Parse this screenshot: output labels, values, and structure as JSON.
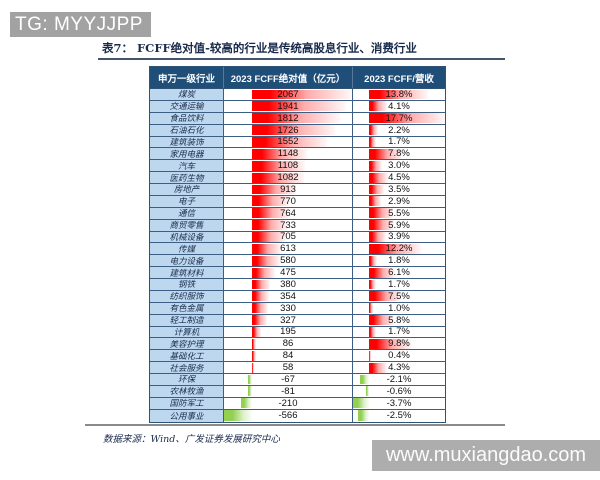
{
  "watermark_top": {
    "text": "TG: MYYJJPP"
  },
  "title": {
    "text": "表7：  FCFF绝对值-较高的行业是传统高股息行业、消费行业"
  },
  "table": {
    "headers": [
      "申万一级行业",
      "2023 FCFF绝对值（亿元）",
      "2023 FCFF/营收"
    ]
  },
  "chart_data": {
    "type": "table",
    "title": "表7：FCFF绝对值-较高的行业是传统高股息行业、消费行业",
    "columns": [
      "申万一级行业",
      "2023 FCFF绝对值（亿元）",
      "2023 FCFF/营收"
    ],
    "bar_style": "excel-gradient-databar",
    "industries": [
      "煤炭",
      "交通运输",
      "食品饮料",
      "石油石化",
      "建筑装饰",
      "家用电器",
      "汽车",
      "医药生物",
      "房地产",
      "电子",
      "通信",
      "商贸零售",
      "机械设备",
      "传媒",
      "电力设备",
      "建筑材料",
      "钢铁",
      "纺织服饰",
      "有色金属",
      "轻工制造",
      "计算机",
      "美容护理",
      "基础化工",
      "社会服务",
      "环保",
      "农林牧渔",
      "国防军工",
      "公用事业"
    ],
    "series": [
      {
        "name": "2023 FCFF绝对值（亿元）",
        "values": [
          2067,
          1941,
          1812,
          1726,
          1552,
          1148,
          1108,
          1082,
          913,
          770,
          764,
          733,
          705,
          613,
          580,
          475,
          380,
          354,
          330,
          327,
          195,
          86,
          84,
          58,
          -67,
          -81,
          -210,
          -566
        ]
      },
      {
        "name": "2023 FCFF/营收(%)",
        "values": [
          13.8,
          4.1,
          17.7,
          2.2,
          1.7,
          7.8,
          3.0,
          4.5,
          3.5,
          2.9,
          5.5,
          5.9,
          3.9,
          12.2,
          1.8,
          6.1,
          1.7,
          7.5,
          1.0,
          5.8,
          1.7,
          9.8,
          0.4,
          4.3,
          -2.1,
          -0.6,
          -3.7,
          -2.5
        ]
      }
    ],
    "colors": {
      "positive_bar": "#ff0000",
      "negative_bar": "#92d050",
      "header_bg": "#1f4e79",
      "label_bg": "#bdd7ee"
    }
  },
  "footer": {
    "source": "数据来源：Wind、广发证券发展研究中心"
  },
  "watermark_bottom": {
    "text": "www.muxiangdao.com"
  }
}
